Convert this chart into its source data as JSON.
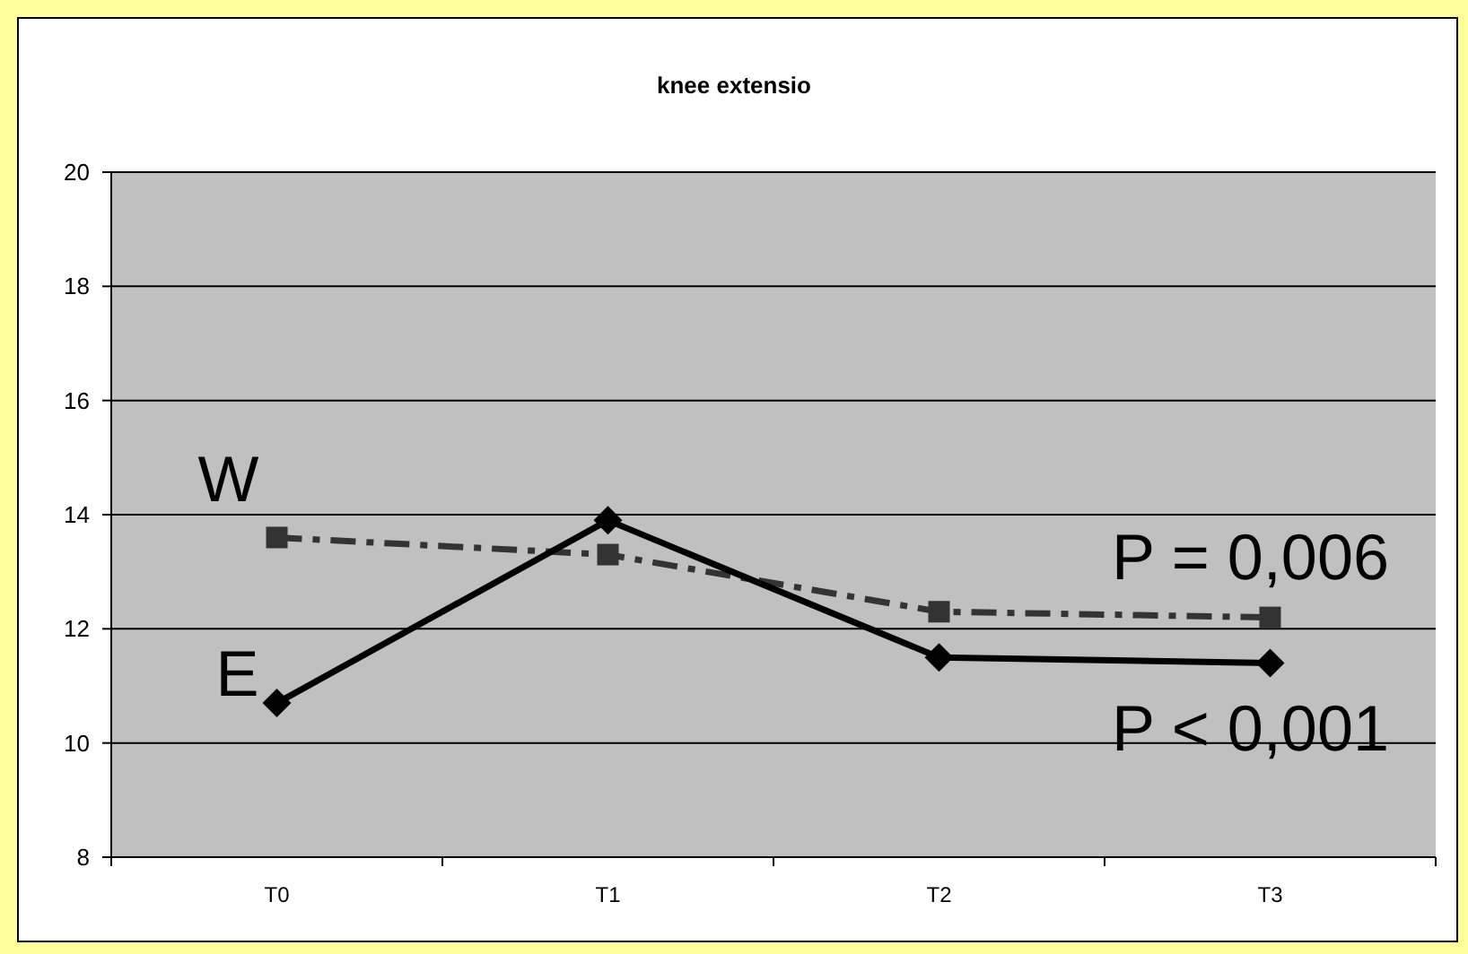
{
  "chart_data": {
    "type": "line",
    "title": "knee extensio",
    "categories": [
      "T0",
      "T1",
      "T2",
      "T3"
    ],
    "series": [
      {
        "name": "W",
        "color": "#333333",
        "values": [
          13.6,
          13.3,
          12.3,
          12.2
        ],
        "marker": "square",
        "line_style": "dashdot"
      },
      {
        "name": "E",
        "color": "#000000",
        "values": [
          10.7,
          13.9,
          11.5,
          11.4
        ],
        "marker": "diamond",
        "line_style": "solid"
      }
    ],
    "ylim": [
      8,
      20
    ],
    "yticks": [
      8,
      10,
      12,
      14,
      16,
      18,
      20
    ],
    "grid": "y",
    "annotations": [
      "P = 0,006",
      "P < 0,001"
    ]
  }
}
